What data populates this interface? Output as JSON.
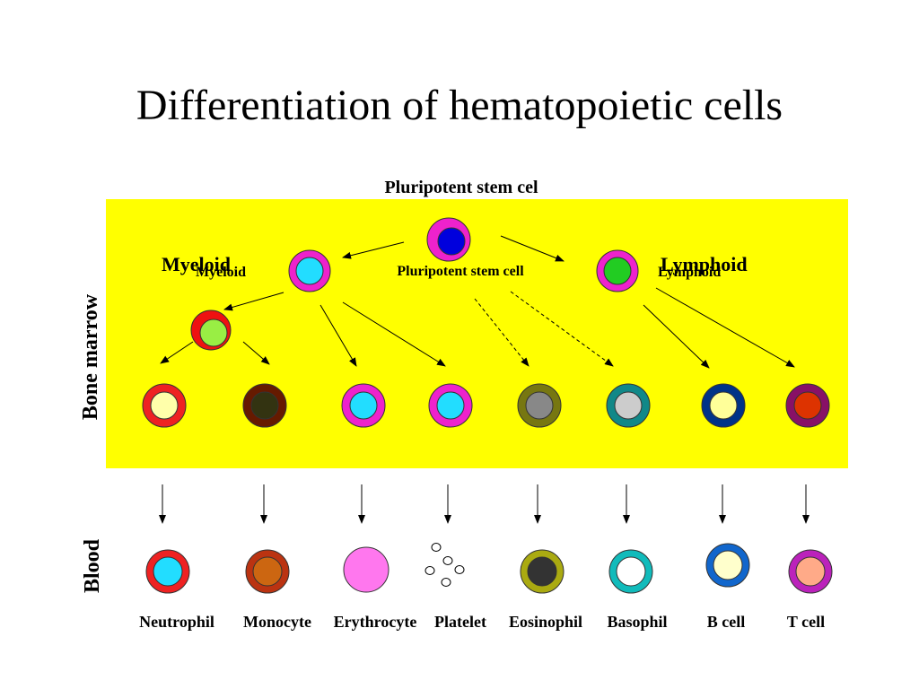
{
  "slide": {
    "title": "Differentiation of hematopoietic cells"
  },
  "labels": {
    "stem_top": "Pluripotent stem cel",
    "stem_inner": "Pluripotent stem cell",
    "myeloid_large": "Myeloid",
    "myeloid_small": "Myeloid",
    "lymphoid_large": "Lymphoid",
    "lymphoid_small": "Lymphoid",
    "bone_marrow": "Bone marrow",
    "blood": "Blood"
  },
  "colors": {
    "marrow_bg": "#ffff00",
    "stem": {
      "outer": "#ee22cc",
      "inner": "#0000dd"
    },
    "myeloid": {
      "outer": "#ee22cc",
      "inner": "#22ddff"
    },
    "lymphoid": {
      "outer": "#ee22cc",
      "inner": "#22cc22"
    },
    "myeloblast": {
      "outer": "#ee1111",
      "inner": "#99ee44"
    }
  },
  "marrow_cells": [
    {
      "name": "neutrophil-precursor",
      "outer": "#ee2222",
      "inner": "#ffffaa"
    },
    {
      "name": "monocyte-precursor",
      "outer": "#661a00",
      "inner": "#333311"
    },
    {
      "name": "erythrocyte-precursor",
      "outer": "#ee22cc",
      "inner": "#22ddff"
    },
    {
      "name": "platelet-precursor",
      "outer": "#ee22cc",
      "inner": "#22ddff"
    },
    {
      "name": "eosinophil-precursor",
      "outer": "#777711",
      "inner": "#888888"
    },
    {
      "name": "basophil-precursor",
      "outer": "#118888",
      "inner": "#cccccc"
    },
    {
      "name": "b-cell-precursor",
      "outer": "#003388",
      "inner": "#ffff99"
    },
    {
      "name": "t-cell-precursor",
      "outer": "#881166",
      "inner": "#dd3300"
    }
  ],
  "blood_cells": [
    {
      "name": "Neutrophil",
      "outer": "#ee2222",
      "inner": "#22ddff"
    },
    {
      "name": "Monocyte",
      "outer": "#bb3311",
      "inner": "#cc6611"
    },
    {
      "name": "Erythrocyte",
      "outer": "#ff77ee",
      "inner": ""
    },
    {
      "name": "Platelet",
      "outer": "",
      "inner": ""
    },
    {
      "name": "Eosinophil",
      "outer": "#aaaa11",
      "inner": "#333333"
    },
    {
      "name": "Basophil",
      "outer": "#11bbbb",
      "inner": "#ffffff"
    },
    {
      "name": "B cell",
      "outer": "#1166cc",
      "inner": "#ffffcc"
    },
    {
      "name": "T cell",
      "outer": "#bb22bb",
      "inner": "#ffaa88"
    }
  ]
}
